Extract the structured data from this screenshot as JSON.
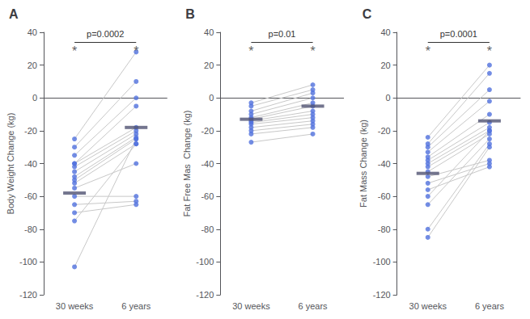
{
  "chart_data": [
    {
      "type": "paired",
      "title": "A",
      "ylabel": "Body Weight Change (kg)",
      "categories": [
        "30 weeks",
        "6 years"
      ],
      "values": [
        [
          -25,
          -30,
          -35,
          -40,
          -40,
          -42,
          -45,
          -48,
          -50,
          -52,
          -55,
          -60,
          -65,
          -70,
          -75,
          -103
        ],
        [
          28,
          10,
          0,
          -5,
          -18,
          -20,
          -22,
          -24,
          -25,
          -28,
          -40,
          -60,
          -63,
          -65,
          -28,
          -25
        ]
      ],
      "means": [
        -58,
        -18
      ],
      "annotations": [
        {
          "text": "*",
          "x": "30 weeks"
        },
        {
          "text": "*",
          "x": "6 years"
        },
        {
          "text": "p=0.0002"
        }
      ],
      "ylim": [
        -120,
        40
      ],
      "yticks": [
        -120,
        -100,
        -80,
        -60,
        -40,
        -20,
        0,
        20,
        40
      ],
      "grid": false
    },
    {
      "type": "paired",
      "title": "B",
      "ylabel": "Fat Free Mas  Change (kg)",
      "categories": [
        "30 weeks",
        "6 years"
      ],
      "values": [
        [
          -3,
          -5,
          -8,
          -10,
          -12,
          -13,
          -14,
          -15,
          -16,
          -18,
          -20,
          -22,
          -27
        ],
        [
          8,
          5,
          3,
          0,
          -3,
          -5,
          -8,
          -10,
          -12,
          -14,
          -16,
          -18,
          -22
        ]
      ],
      "means": [
        -13,
        -5
      ],
      "annotations": [
        {
          "text": "*",
          "x": "30 weeks"
        },
        {
          "text": "*",
          "x": "6 years"
        },
        {
          "text": "p=0.01"
        }
      ],
      "ylim": [
        -120,
        40
      ],
      "yticks": [
        -120,
        -100,
        -80,
        -60,
        -40,
        -20,
        0,
        20,
        40
      ],
      "grid": false
    },
    {
      "type": "paired",
      "title": "C",
      "ylabel": "Fat Mass Change (kg)",
      "categories": [
        "30 weeks",
        "6 years"
      ],
      "values": [
        [
          -24,
          -28,
          -30,
          -33,
          -36,
          -38,
          -40,
          -42,
          -45,
          -48,
          -52,
          -56,
          -60,
          -65,
          -80,
          -85
        ],
        [
          20,
          15,
          5,
          -2,
          -10,
          -15,
          -18,
          -20,
          -22,
          -38,
          -40,
          -42,
          -20,
          -25,
          -28,
          -30
        ]
      ],
      "means": [
        -46,
        -14
      ],
      "annotations": [
        {
          "text": "*",
          "x": "30 weeks"
        },
        {
          "text": "*",
          "x": "6 years"
        },
        {
          "text": "p=0.0001"
        }
      ],
      "ylim": [
        -120,
        40
      ],
      "yticks": [
        -120,
        -100,
        -80,
        -60,
        -40,
        -20,
        0,
        20,
        40
      ],
      "grid": false
    }
  ]
}
